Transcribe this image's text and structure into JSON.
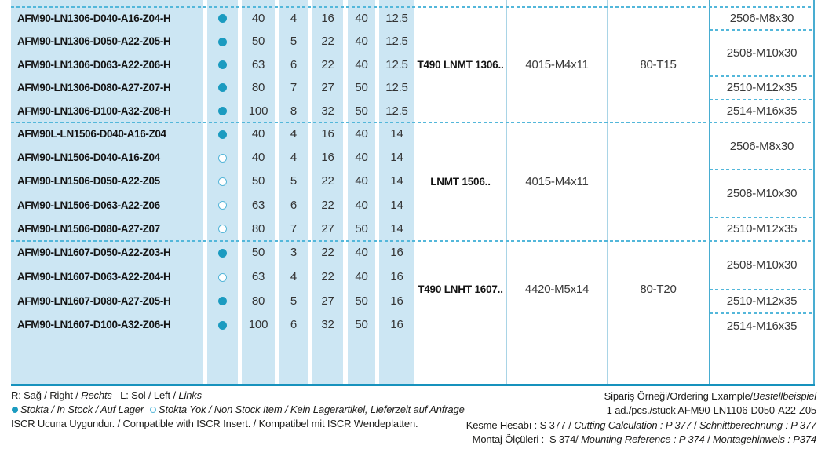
{
  "colors": {
    "table_blue_bg": "#cce6f3",
    "accent_teal": "#1792bd",
    "light_line": "#a9d4e6",
    "dash_line": "#53b7da",
    "fix_border": "#49add1",
    "stock_dot": "#1b9bc0",
    "nonstock_dot_border": "#55b6d8"
  },
  "table": {
    "groups": [
      {
        "insert_label": "T490 LNMT 1306..",
        "screw": "4015-M4x11",
        "key": "80-T15",
        "rows": [
          {
            "designation": "AFM90-LN1306-D040-A16-Z04-H",
            "stock": true,
            "values": [
              "40",
              "4",
              "16",
              "40",
              "12.5"
            ]
          },
          {
            "designation": "AFM90-LN1306-D050-A22-Z05-H",
            "stock": true,
            "values": [
              "50",
              "5",
              "22",
              "40",
              "12.5"
            ]
          },
          {
            "designation": "AFM90-LN1306-D063-A22-Z06-H",
            "stock": true,
            "values": [
              "63",
              "6",
              "22",
              "40",
              "12.5"
            ]
          },
          {
            "designation": "AFM90-LN1306-D080-A27-Z07-H",
            "stock": true,
            "values": [
              "80",
              "7",
              "27",
              "50",
              "12.5"
            ]
          },
          {
            "designation": "AFM90-LN1306-D100-A32-Z08-H",
            "stock": true,
            "values": [
              "100",
              "8",
              "32",
              "50",
              "12.5"
            ]
          }
        ],
        "fix_screws": [
          {
            "label": "2506-M8x30",
            "row": 0,
            "span": 1
          },
          {
            "label": "2508-M10x30",
            "row": 1,
            "span": 2
          },
          {
            "label": "2510-M12x35",
            "row": 3,
            "span": 1
          },
          {
            "label": "2514-M16x35",
            "row": 4,
            "span": 1
          }
        ]
      },
      {
        "insert_label": "LNMT 1506..",
        "screw": "4015-M4x11",
        "key": "",
        "rows": [
          {
            "designation": "AFM90L-LN1506-D040-A16-Z04",
            "stock": true,
            "values": [
              "40",
              "4",
              "16",
              "40",
              "14"
            ]
          },
          {
            "designation": "AFM90-LN1506-D040-A16-Z04",
            "stock": false,
            "values": [
              "40",
              "4",
              "16",
              "40",
              "14"
            ]
          },
          {
            "designation": "AFM90-LN1506-D050-A22-Z05",
            "stock": false,
            "values": [
              "50",
              "5",
              "22",
              "40",
              "14"
            ]
          },
          {
            "designation": "AFM90-LN1506-D063-A22-Z06",
            "stock": false,
            "values": [
              "63",
              "6",
              "22",
              "40",
              "14"
            ]
          },
          {
            "designation": "AFM90-LN1506-D080-A27-Z07",
            "stock": false,
            "values": [
              "80",
              "7",
              "27",
              "50",
              "14"
            ]
          }
        ],
        "fix_screws": [
          {
            "label": "2506-M8x30",
            "row": 0,
            "span": 2
          },
          {
            "label": "2508-M10x30",
            "row": 2,
            "span": 2
          },
          {
            "label": "2510-M12x35",
            "row": 4,
            "span": 1
          }
        ]
      },
      {
        "insert_label": "T490 LNHT 1607..",
        "screw": "4420-M5x14",
        "key": "80-T20",
        "rows": [
          {
            "designation": "AFM90-LN1607-D050-A22-Z03-H",
            "stock": true,
            "values": [
              "50",
              "3",
              "22",
              "40",
              "16"
            ]
          },
          {
            "designation": "AFM90-LN1607-D063-A22-Z04-H",
            "stock": false,
            "values": [
              "63",
              "4",
              "22",
              "40",
              "16"
            ]
          },
          {
            "designation": "AFM90-LN1607-D080-A27-Z05-H",
            "stock": true,
            "values": [
              "80",
              "5",
              "27",
              "50",
              "16"
            ]
          },
          {
            "designation": "AFM90-LN1607-D100-A32-Z06-H",
            "stock": true,
            "values": [
              "100",
              "6",
              "32",
              "50",
              "16"
            ]
          }
        ],
        "fix_screws": [
          {
            "label": "2508-M10x30",
            "row": 0,
            "span": 2
          },
          {
            "label": "2510-M12x35",
            "row": 2,
            "span": 1
          },
          {
            "label": "2514-M16x35",
            "row": 3,
            "span": 1,
            "extend": true
          }
        ]
      }
    ]
  },
  "footer": {
    "left_lines": [
      [
        {
          "t": "R: Sağ / Right / "
        },
        {
          "t": "Rechts",
          "i": true
        },
        {
          "t": "   L: Sol / Left / "
        },
        {
          "t": "Links",
          "i": true
        }
      ],
      [
        {
          "d": "filled"
        },
        {
          "t": "Stokta / In Stock / Auf Lager  ",
          "i": true
        },
        {
          "d": "hollow"
        },
        {
          "t": "Stokta Yok / Non Stock Item / Kein Lagerartikel, Lieferzeit auf Anfrage",
          "i": true
        }
      ],
      [
        {
          "t": "ISCR Ucuna Uygundur. / Compatible with ISCR Insert. / Kompatibel mit ISCR Wendeplatten."
        }
      ]
    ],
    "right_lines": [
      [
        {
          "t": "Sipariş Örneği/Ordering Example/"
        },
        {
          "t": "Bestellbeispiel",
          "i": true
        }
      ],
      [
        {
          "t": "1 ad./pcs./stück AFM90-LN1106-D050-A22-Z05"
        }
      ],
      [
        {
          "t": "Kesme Hesabı : S 377 / "
        },
        {
          "t": "Cutting Calculation : P 377",
          "i": true
        },
        {
          "t": " / "
        },
        {
          "t": "Schnittberechnung : P 377",
          "i": true
        }
      ],
      [
        {
          "t": "Montaj Ölçüleri :  S 374/ "
        },
        {
          "t": "Mounting Reference : P 374",
          "i": true
        },
        {
          "t": " / "
        },
        {
          "t": "Montagehinweis : P374",
          "i": true
        }
      ]
    ]
  }
}
